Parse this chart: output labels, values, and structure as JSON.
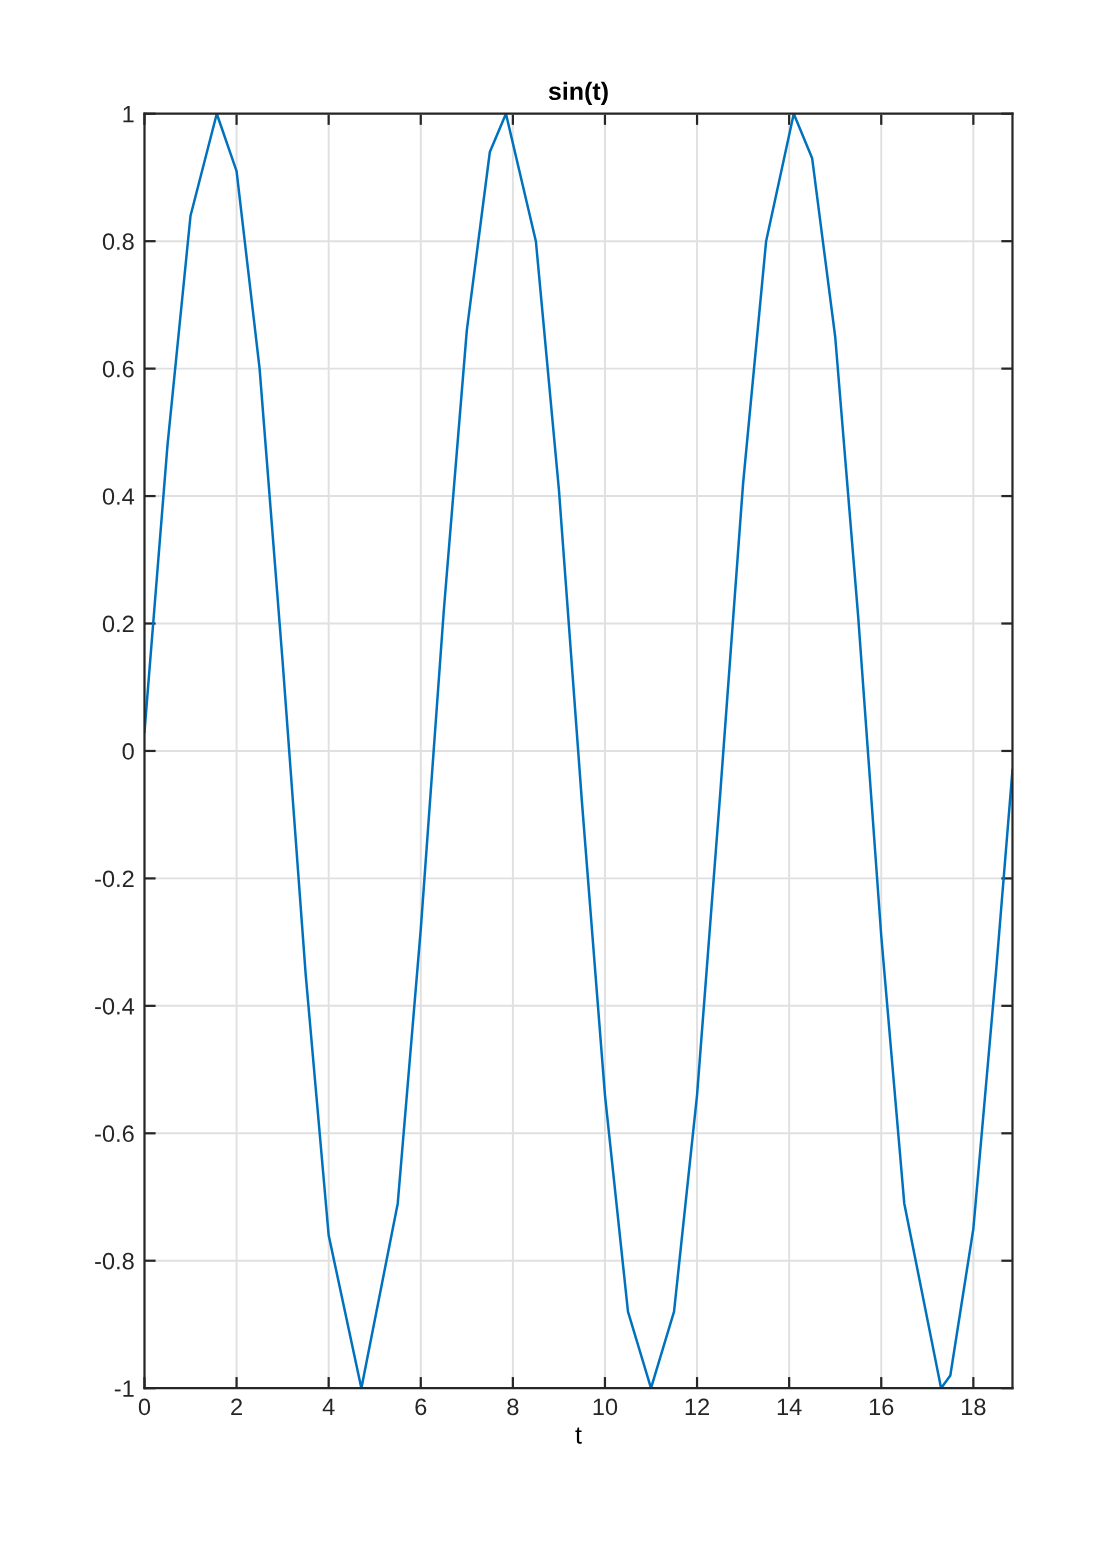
{
  "chart_data": {
    "type": "line",
    "title": "sin(t)",
    "xlabel": "t",
    "x": [
      0,
      0.5,
      1,
      1.57,
      2,
      2.5,
      3,
      3.5,
      4,
      4.71,
      5.5,
      6,
      6.5,
      7,
      7.5,
      7.85,
      8.5,
      9,
      9.5,
      10,
      10.5,
      11,
      11.5,
      12,
      12.5,
      13,
      13.5,
      14.1,
      14.5,
      15,
      15.5,
      16,
      16.5,
      17.3,
      17.5,
      18,
      18.5,
      18.85
    ],
    "series": [
      {
        "color": "#0072bd",
        "values": [
          0.03,
          0.48,
          0.84,
          1.0,
          0.91,
          0.6,
          0.14,
          -0.35,
          -0.76,
          -1.0,
          -0.71,
          -0.28,
          0.22,
          0.66,
          0.94,
          1.0,
          0.8,
          0.41,
          -0.08,
          -0.54,
          -0.88,
          -1.0,
          -0.88,
          -0.54,
          -0.07,
          0.42,
          0.8,
          1.0,
          0.93,
          0.65,
          0.21,
          -0.29,
          -0.71,
          -1.0,
          -0.98,
          -0.75,
          -0.34,
          -0.03
        ]
      }
    ],
    "xlim": [
      0,
      18.85
    ],
    "ylim": [
      -1,
      1
    ],
    "xticks": [
      0,
      2,
      4,
      6,
      8,
      10,
      12,
      14,
      16,
      18
    ],
    "yticks": [
      -1,
      -0.8,
      -0.6,
      -0.4,
      -0.2,
      0,
      0.2,
      0.4,
      0.6,
      0.8,
      1
    ],
    "grid": true,
    "legend": false
  }
}
